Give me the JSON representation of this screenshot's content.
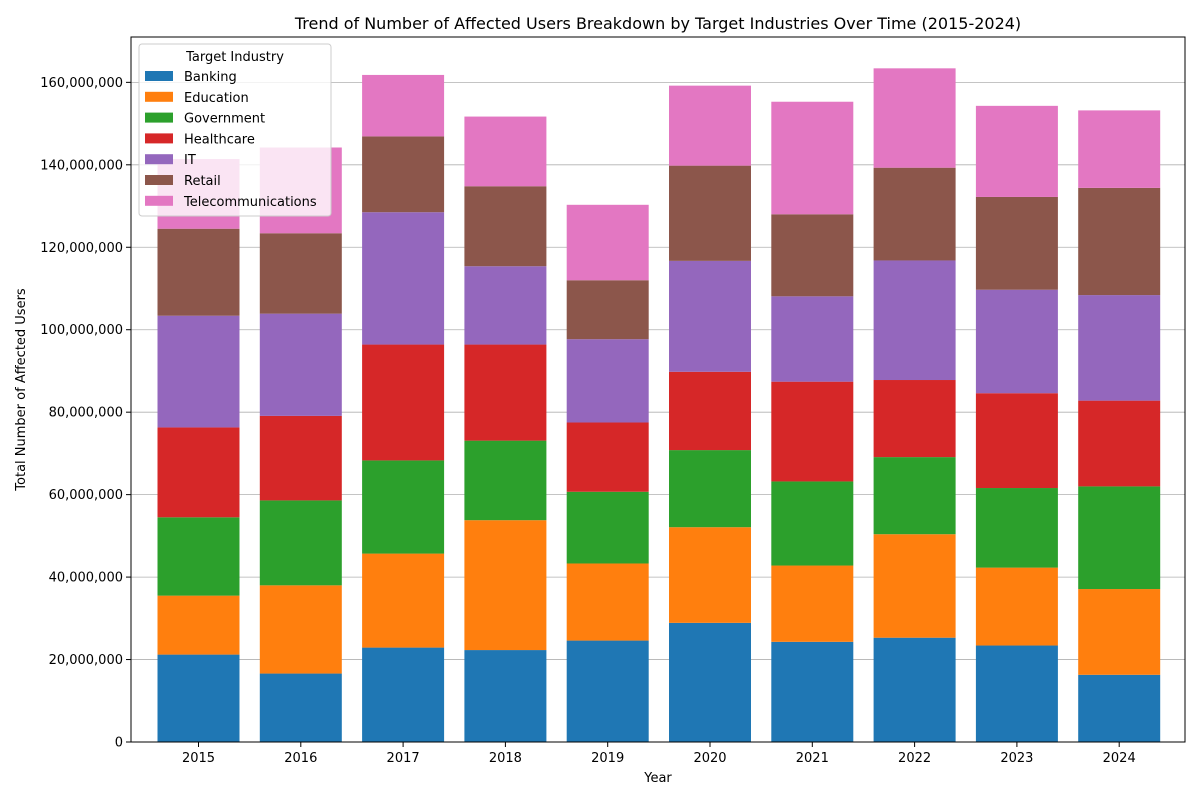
{
  "chart_data": {
    "type": "bar",
    "stacked": true,
    "title": "Trend of Number of Affected Users Breakdown by Target Industries Over Time (2015-2024)",
    "xlabel": "Year",
    "ylabel": "Total Number of Affected Users",
    "ylim": [
      0,
      171000000
    ],
    "yticks": [
      0,
      20000000,
      40000000,
      60000000,
      80000000,
      100000000,
      120000000,
      140000000,
      160000000
    ],
    "ytick_labels": [
      "0",
      "20,000,000",
      "40,000,000",
      "60,000,000",
      "80,000,000",
      "100,000,000",
      "120,000,000",
      "140,000,000",
      "160,000,000"
    ],
    "grid": "horizontal",
    "legend_title": "Target Industry",
    "legend_position": "top-left",
    "categories": [
      "2015",
      "2016",
      "2017",
      "2018",
      "2019",
      "2020",
      "2021",
      "2022",
      "2023",
      "2024"
    ],
    "series": [
      {
        "name": "Banking",
        "color": "#1f77b4",
        "values": [
          21200000,
          16600000,
          22900000,
          22300000,
          24600000,
          28900000,
          24300000,
          25300000,
          23400000,
          16300000
        ]
      },
      {
        "name": "Education",
        "color": "#ff7f0e",
        "values": [
          14300000,
          21400000,
          22800000,
          31500000,
          18700000,
          23200000,
          18500000,
          25100000,
          18900000,
          20800000
        ]
      },
      {
        "name": "Government",
        "color": "#2ca02c",
        "values": [
          19000000,
          20600000,
          22600000,
          19300000,
          17400000,
          18700000,
          20400000,
          18700000,
          19300000,
          24900000
        ]
      },
      {
        "name": "Healthcare",
        "color": "#d62728",
        "values": [
          21800000,
          20500000,
          28100000,
          23300000,
          16800000,
          19000000,
          24200000,
          18700000,
          23000000,
          20800000
        ]
      },
      {
        "name": "IT",
        "color": "#9467bd",
        "values": [
          27100000,
          24800000,
          32100000,
          19000000,
          20200000,
          26900000,
          20700000,
          29000000,
          25100000,
          25600000
        ]
      },
      {
        "name": "Retail",
        "color": "#8c564b",
        "values": [
          21100000,
          19500000,
          18400000,
          19400000,
          14300000,
          23100000,
          19900000,
          22500000,
          22500000,
          26000000
        ]
      },
      {
        "name": "Telecommunications",
        "color": "#e377c2",
        "values": [
          16900000,
          20800000,
          14900000,
          16900000,
          18300000,
          19400000,
          27300000,
          24100000,
          22100000,
          18800000
        ]
      }
    ]
  }
}
